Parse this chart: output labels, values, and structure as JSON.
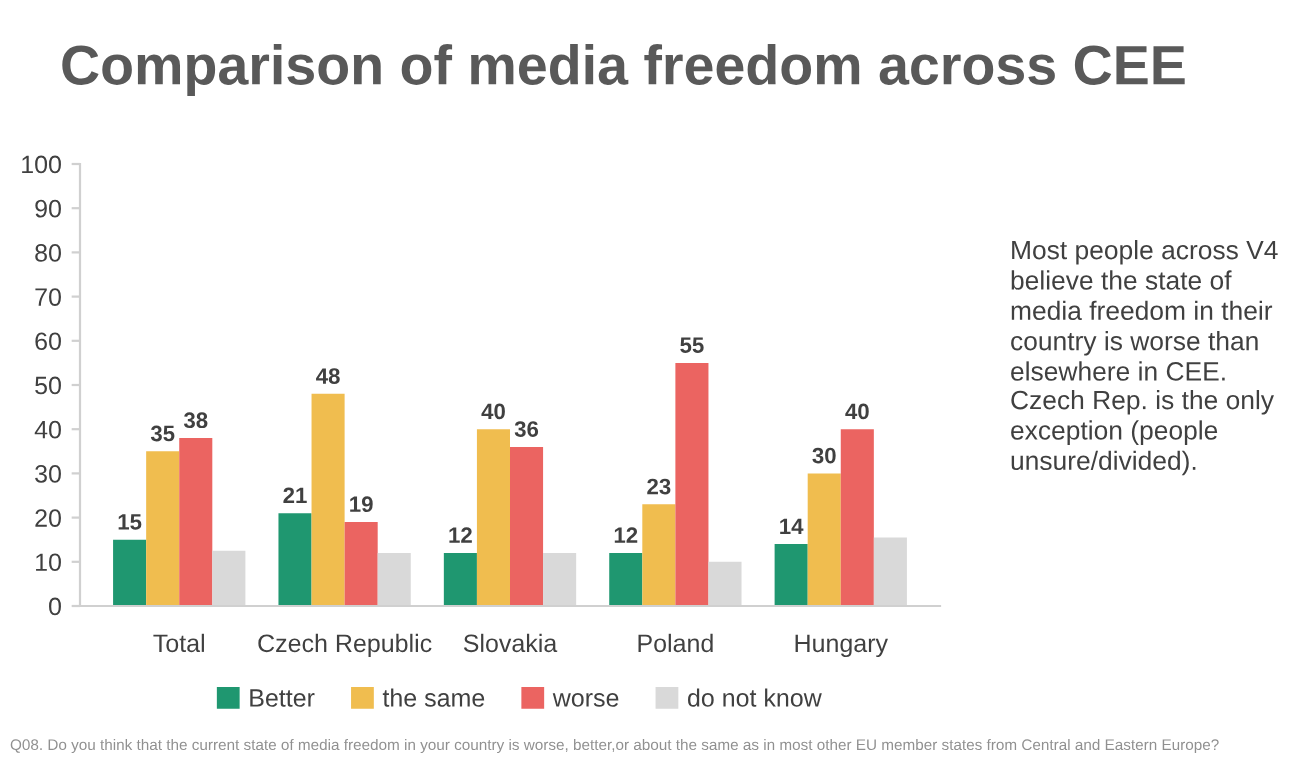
{
  "chart_data": {
    "type": "bar",
    "title": "Comparison of media freedom across CEE",
    "categories": [
      "Total",
      "Czech Republic",
      "Slovakia",
      "Poland",
      "Hungary"
    ],
    "series": [
      {
        "name": "Better",
        "color": "#1f9770",
        "values": [
          15,
          21,
          12,
          12,
          14
        ],
        "value_labels": [
          "15",
          "21",
          "12",
          "12",
          "14"
        ]
      },
      {
        "name": "the same",
        "color": "#f0bd4f",
        "values": [
          35,
          48,
          40,
          23,
          30
        ],
        "value_labels": [
          "35",
          "48",
          "40",
          "23",
          "30"
        ]
      },
      {
        "name": "worse",
        "color": "#eb6461",
        "values": [
          38,
          19,
          36,
          55,
          40
        ],
        "value_labels": [
          "38",
          "19",
          "36",
          "55",
          "40"
        ]
      },
      {
        "name": "do not know",
        "color": "#d9d9d9",
        "values": [
          12.5,
          12,
          12,
          10,
          15.5
        ]
      }
    ],
    "ylim": [
      0,
      100
    ],
    "yticks": [
      0,
      10,
      20,
      30,
      40,
      50,
      60,
      70,
      80,
      90,
      100
    ],
    "grid": false,
    "legend": "bottom",
    "annotations": [
      "Most people across V4 believe the state of media freedom in their country is worse than elsewhere in CEE.",
      "Czech Rep. is the only exception (people unsure/divided).",
      "Q08. Do you think that the current state of media freedom in your country is worse, better,or about the same as in most other EU member states from Central and Eastern Europe?"
    ]
  }
}
